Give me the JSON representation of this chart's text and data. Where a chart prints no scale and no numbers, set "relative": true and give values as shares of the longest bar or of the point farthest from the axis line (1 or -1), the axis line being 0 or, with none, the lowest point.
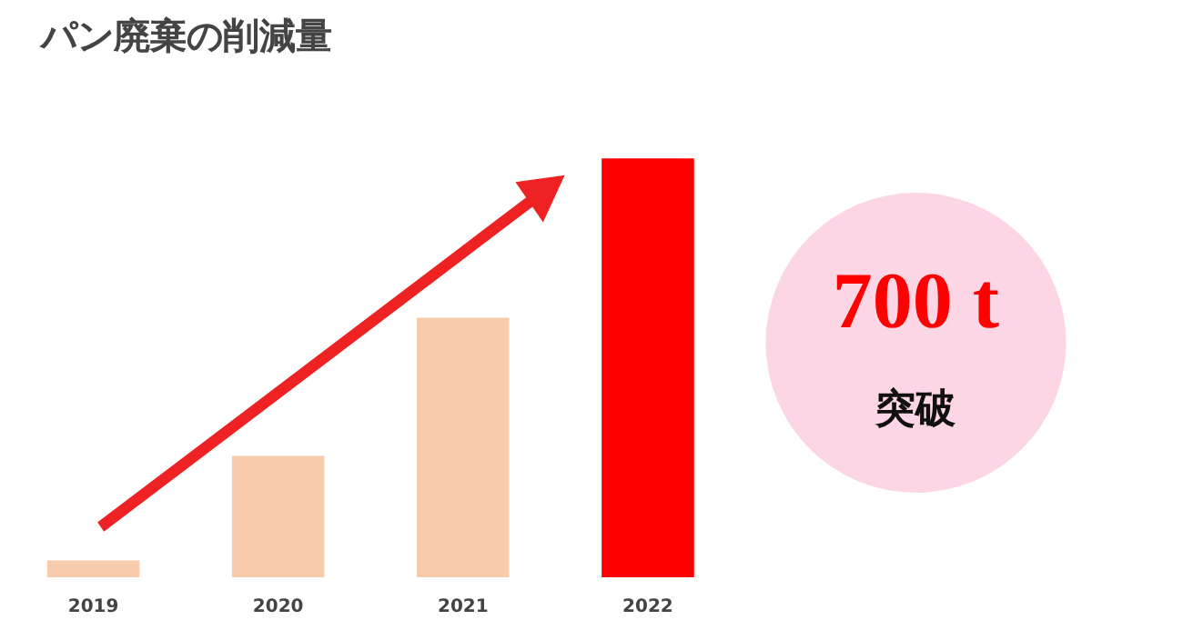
{
  "chart_data": {
    "type": "bar",
    "title": "パン廃棄の削減量",
    "categories": [
      "2019",
      "2020",
      "2021",
      "2022"
    ],
    "values": [
      0.04,
      0.29,
      0.62,
      1.0
    ],
    "colors": [
      "#f8cbad",
      "#f8cbad",
      "#f8cbad",
      "#ff0000"
    ],
    "relative": true,
    "annotations": [
      "700 t",
      "突破"
    ]
  }
}
